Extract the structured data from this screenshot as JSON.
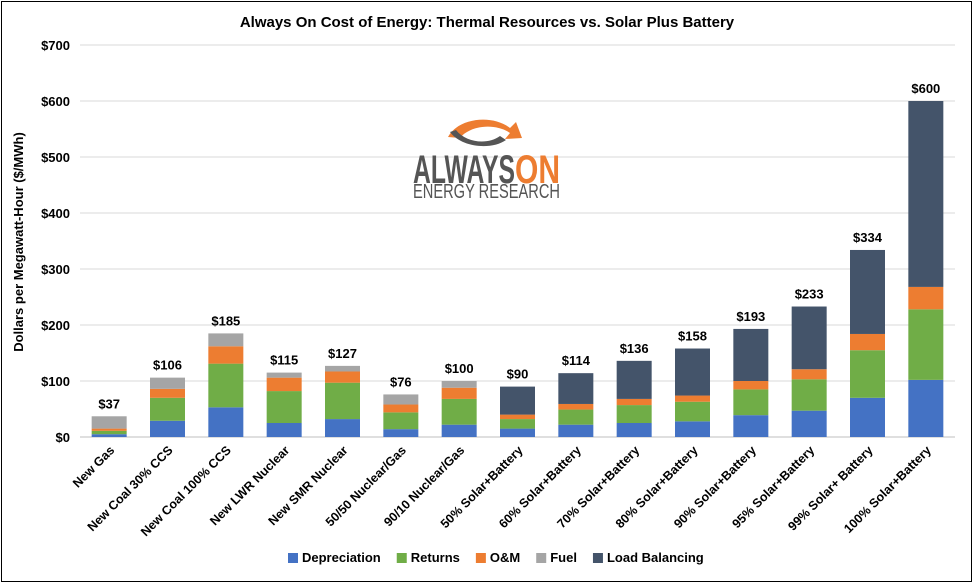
{
  "chart_data": {
    "type": "bar",
    "stacked": true,
    "title": "Always On Cost of Energy: Thermal Resources vs. Solar Plus Battery",
    "ylabel": "Dollars per Megawatt-Hour ($/MWh)",
    "xlabel": "",
    "ylim": [
      0,
      700
    ],
    "yticks": [
      "$0",
      "$100",
      "$200",
      "$300",
      "$400",
      "$500",
      "$600",
      "$700"
    ],
    "ytick_values": [
      0,
      100,
      200,
      300,
      400,
      500,
      600,
      700
    ],
    "grid": true,
    "legend_position": "bottom",
    "categories": [
      "New Gas",
      "New Coal 30% CCS",
      "New Coal 100% CCS",
      "New LWR Nuclear",
      "New SMR Nuclear",
      "50/50 Nuclear/Gas",
      "90/10 Nuclear/Gas",
      "50% Solar+Battery",
      "60% Solar+Battery",
      "70% Solar+Battery",
      "80% Solar+Battery",
      "90% Solar+Battery",
      "95% Solar+Battery",
      "99% Solar+ Battery",
      "100% Solar+Battery"
    ],
    "totals": [
      "$37",
      "$106",
      "$185",
      "$115",
      "$127",
      "$76",
      "$100",
      "$90",
      "$114",
      "$136",
      "$158",
      "$193",
      "$233",
      "$334",
      "$600"
    ],
    "series": [
      {
        "name": "Depreciation",
        "color": "#4472c4",
        "values": [
          5,
          29,
          53,
          25,
          32,
          14,
          22,
          15,
          22,
          25,
          28,
          39,
          47,
          70,
          102
        ]
      },
      {
        "name": "Returns",
        "color": "#70ad47",
        "values": [
          6,
          41,
          78,
          57,
          65,
          30,
          46,
          17,
          27,
          32,
          35,
          46,
          56,
          85,
          126
        ]
      },
      {
        "name": "O&M",
        "color": "#ed7d31",
        "values": [
          4,
          16,
          31,
          24,
          20,
          14,
          20,
          8,
          10,
          11,
          11,
          15,
          18,
          29,
          40
        ]
      },
      {
        "name": "Fuel",
        "color": "#a5a5a5",
        "values": [
          22,
          20,
          23,
          9,
          10,
          18,
          12,
          0,
          0,
          0,
          0,
          0,
          0,
          0,
          0
        ]
      },
      {
        "name": "Load Balancing",
        "color": "#44546a",
        "values": [
          0,
          0,
          0,
          0,
          0,
          0,
          0,
          50,
          55,
          68,
          84,
          93,
          112,
          150,
          332
        ]
      }
    ]
  },
  "logo": {
    "word_left": "ALWAYS",
    "word_right": "ON",
    "sub": "ENERGY RESEARCH"
  }
}
